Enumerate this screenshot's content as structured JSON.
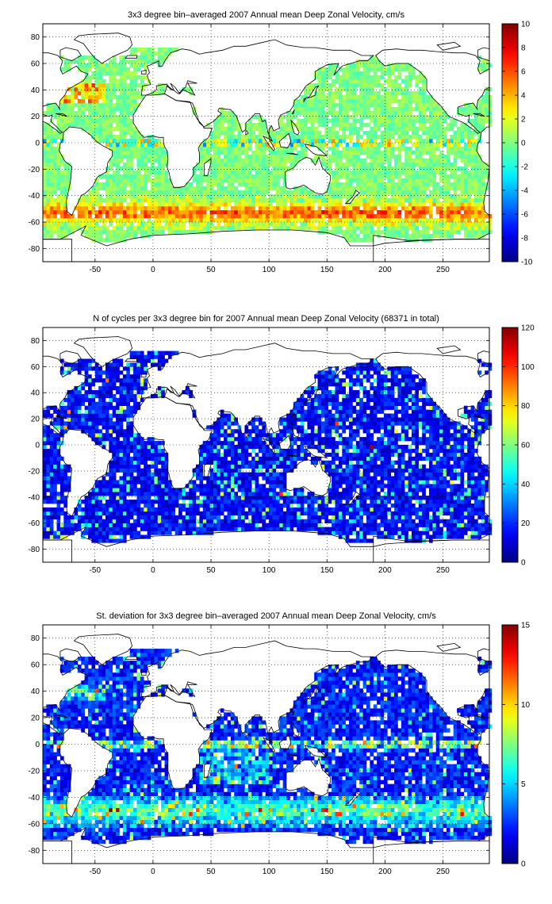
{
  "chart_data": [
    {
      "type": "heatmap",
      "title": "3x3 degree bin–averaged 2007 Annual mean Deep Zonal Velocity, cm/s",
      "xticks": [
        -50,
        0,
        50,
        100,
        150,
        200,
        250
      ],
      "yticks": [
        80,
        60,
        40,
        20,
        0,
        -20,
        -40,
        -60,
        -80
      ],
      "xlim": [
        -95,
        290
      ],
      "ylim": [
        -90,
        90
      ],
      "grid": true,
      "colorbar": {
        "ticks": [
          10,
          8,
          6,
          4,
          2,
          0,
          -2,
          -4,
          -6,
          -8,
          -10
        ],
        "range": [
          -10,
          10
        ],
        "colormap": "jet"
      },
      "variable": "velocity"
    },
    {
      "type": "heatmap",
      "title": "N of cycles per 3x3 degree bin for 2007 Annual mean Deep Zonal Velocity (68371 in total)",
      "xticks": [
        -50,
        0,
        50,
        100,
        150,
        200,
        250
      ],
      "yticks": [
        80,
        60,
        40,
        20,
        0,
        -20,
        -40,
        -60,
        -80
      ],
      "xlim": [
        -95,
        290
      ],
      "ylim": [
        -90,
        90
      ],
      "grid": true,
      "colorbar": {
        "ticks": [
          120,
          100,
          80,
          60,
          40,
          20,
          0
        ],
        "range": [
          0,
          120
        ],
        "colormap": "jet"
      },
      "variable": "count"
    },
    {
      "type": "heatmap",
      "title": "St. deviation for 3x3 degree bin–averaged 2007 Annual mean Deep Zonal Velocity, cm/s",
      "xticks": [
        -50,
        0,
        50,
        100,
        150,
        200,
        250
      ],
      "yticks": [
        80,
        60,
        40,
        20,
        0,
        -20,
        -40,
        -60,
        -80
      ],
      "xlim": [
        -95,
        290
      ],
      "ylim": [
        -90,
        90
      ],
      "grid": true,
      "colorbar": {
        "ticks": [
          15,
          10,
          5,
          0
        ],
        "range": [
          0,
          15
        ],
        "colormap": "jet"
      },
      "variable": "std"
    }
  ]
}
